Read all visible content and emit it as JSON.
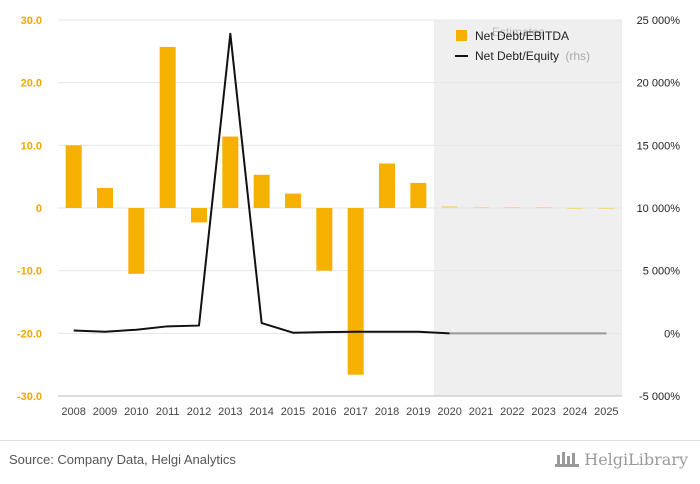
{
  "chart_data": {
    "type": "bar",
    "categories": [
      "2008",
      "2009",
      "2010",
      "2011",
      "2012",
      "2013",
      "2014",
      "2015",
      "2016",
      "2017",
      "2018",
      "2019",
      "2020",
      "2021",
      "2022",
      "2023",
      "2024",
      "2025"
    ],
    "series": [
      {
        "name": "Net Debt/EBITDA",
        "type": "bar",
        "axis": "left",
        "color": "#f5b000",
        "values": [
          10.0,
          3.2,
          -10.5,
          25.7,
          -2.3,
          11.4,
          5.3,
          2.3,
          -10.0,
          -26.6,
          7.1,
          4.0,
          0.3,
          0.15,
          0.05,
          0.0,
          -0.05,
          -0.1
        ],
        "estimate_color": "#f7d78a"
      },
      {
        "name": "Net Debt/Equity",
        "name_suffix": "(rhs)",
        "type": "line",
        "axis": "right",
        "color": "#111111",
        "values": [
          230,
          130,
          290,
          560,
          620,
          23900,
          820,
          50,
          100,
          130,
          130,
          130,
          0,
          0,
          0,
          0,
          0,
          0
        ],
        "estimate_color": "#999999"
      }
    ],
    "estimates_label": "Estimates",
    "estimate_start": "2020",
    "left_axis": {
      "ylim": [
        -30,
        30
      ],
      "ticks": [
        "30.0",
        "20.0",
        "10.0",
        "0",
        "-10.0",
        "-20.0",
        "-30.0"
      ],
      "tick_values": [
        30,
        20,
        10,
        0,
        -10,
        -20,
        -30
      ]
    },
    "right_axis": {
      "ylim": [
        -5000,
        25000
      ],
      "ticks": [
        "25 000%",
        "20 000%",
        "15 000%",
        "10 000%",
        "5 000%",
        "0%",
        "-5 000%"
      ],
      "tick_values": [
        25000,
        20000,
        15000,
        10000,
        5000,
        0,
        -5000
      ]
    },
    "legend_position": "top-right",
    "grid": true
  },
  "footer": {
    "source": "Source: Company Data, Helgi Analytics",
    "brand": "HelgiLibrary"
  }
}
